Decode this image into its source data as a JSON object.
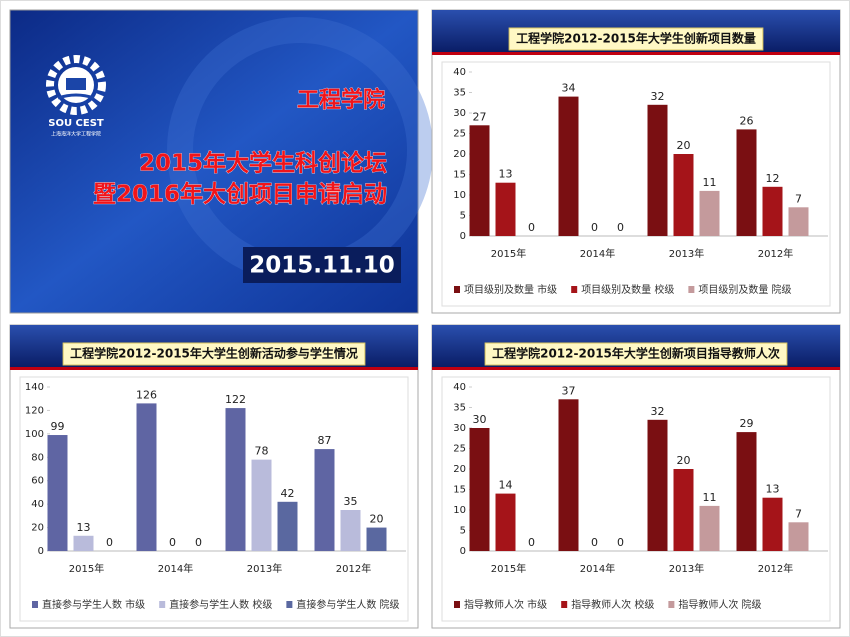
{
  "slide": {
    "title": "工程学院",
    "lines": [
      "2015年大学生科创论坛",
      "暨2016年大创项目申请启动"
    ],
    "date": "2015.11.10",
    "logo": {
      "name": "SOU CEST",
      "subtitle": "上海海洋大学工程学院"
    }
  },
  "chart_data": [
    {
      "type": "bar",
      "title": "工程学院2012-2015年大学生创新项目数量",
      "categories": [
        "2015年",
        "2014年",
        "2013年",
        "2012年"
      ],
      "series": [
        {
          "name": "项目级别及数量 市级",
          "color": "#7a0f12",
          "values": [
            27,
            34,
            32,
            26
          ]
        },
        {
          "name": "项目级别及数量 校级",
          "color": "#a51419",
          "values": [
            13,
            0,
            20,
            12
          ]
        },
        {
          "name": "项目级别及数量 院级",
          "color": "#c49a9c",
          "values": [
            0,
            0,
            11,
            7
          ]
        }
      ],
      "ylim": [
        0,
        40
      ],
      "yticks": [
        0,
        5,
        10,
        15,
        20,
        25,
        30,
        35,
        40
      ],
      "grid": false,
      "legend": "bottom"
    },
    {
      "type": "bar",
      "title": "工程学院2012-2015年大学生创新活动参与学生情况",
      "categories": [
        "2015年",
        "2014年",
        "2013年",
        "2012年"
      ],
      "series": [
        {
          "name": "直接参与学生人数 市级",
          "color": "#5f65a3",
          "values": [
            99,
            126,
            122,
            87
          ]
        },
        {
          "name": "直接参与学生人数 校级",
          "color": "#b9bbdb",
          "values": [
            13,
            0,
            78,
            35
          ]
        },
        {
          "name": "直接参与学生人数 院级",
          "color": "#5a68a0",
          "values": [
            0,
            0,
            42,
            20
          ]
        }
      ],
      "ylim": [
        0,
        140
      ],
      "yticks": [
        0,
        20,
        40,
        60,
        80,
        100,
        120,
        140
      ],
      "grid": false,
      "legend": "bottom"
    },
    {
      "type": "bar",
      "title": "工程学院2012-2015年大学生创新项目指导教师人次",
      "categories": [
        "2015年",
        "2014年",
        "2013年",
        "2012年"
      ],
      "series": [
        {
          "name": "指导教师人次 市级",
          "color": "#7a0f12",
          "values": [
            30,
            37,
            32,
            29
          ]
        },
        {
          "name": "指导教师人次 校级",
          "color": "#a51419",
          "values": [
            14,
            0,
            20,
            13
          ]
        },
        {
          "name": "指导教师人次 院级",
          "color": "#c49a9c",
          "values": [
            0,
            0,
            11,
            7
          ]
        }
      ],
      "ylim": [
        0,
        40
      ],
      "yticks": [
        0,
        5,
        10,
        15,
        20,
        25,
        30,
        35,
        40
      ],
      "grid": false,
      "legend": "bottom"
    }
  ]
}
